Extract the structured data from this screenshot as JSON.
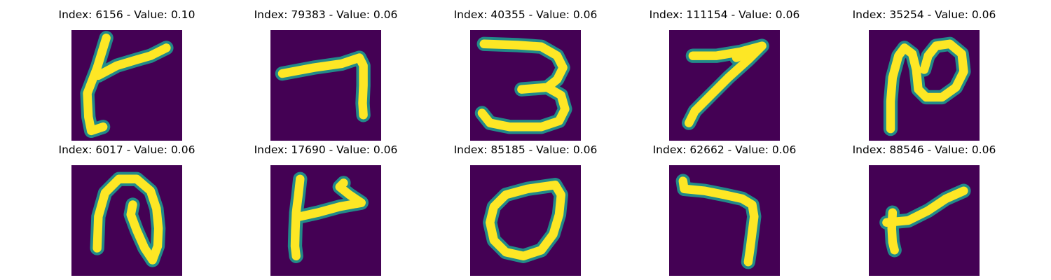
{
  "figure": {
    "colors": {
      "background": "#440154",
      "stroke_mid": "#21918c",
      "stroke_core": "#fde725"
    },
    "panels": [
      {
        "title": "Index: 6156 - Value: 0.10",
        "glyph": "hooked-stroke"
      },
      {
        "title": "Index: 79383 - Value: 0.06",
        "glyph": "angled-stroke"
      },
      {
        "title": "Index: 40355 - Value: 0.06",
        "glyph": "three"
      },
      {
        "title": "Index: 111154 - Value: 0.06",
        "glyph": "seven-diagonal"
      },
      {
        "title": "Index: 35254 - Value: 0.06",
        "glyph": "loop-two"
      },
      {
        "title": "Index: 6017 - Value: 0.06",
        "glyph": "arch-loop"
      },
      {
        "title": "Index: 17690 - Value: 0.06",
        "glyph": "hooked-arrow"
      },
      {
        "title": "Index: 85185 - Value: 0.06",
        "glyph": "zero"
      },
      {
        "title": "Index: 62662 - Value: 0.06",
        "glyph": "seven"
      },
      {
        "title": "Index: 88546 - Value: 0.06",
        "glyph": "cross-stroke"
      }
    ]
  }
}
